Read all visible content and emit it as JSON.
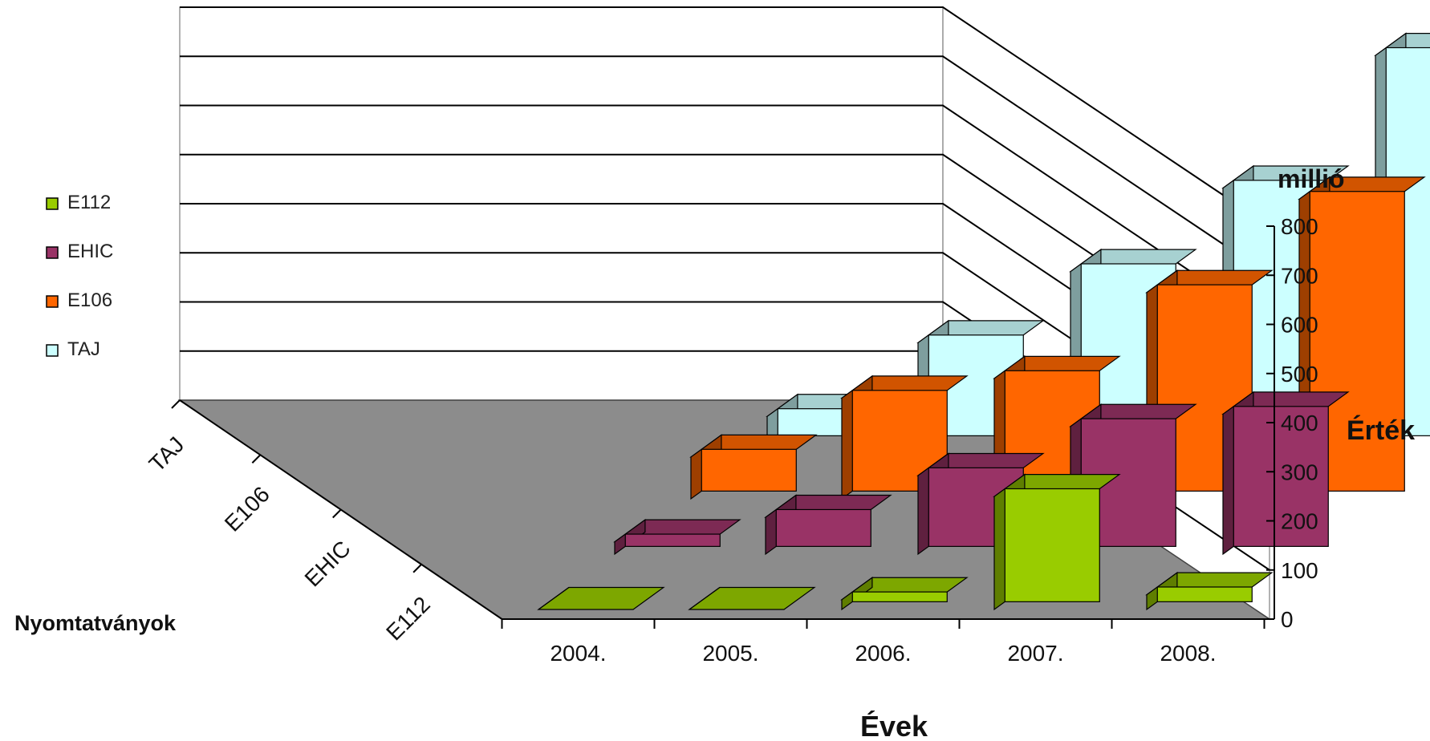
{
  "chart_data": {
    "type": "bar",
    "categories": [
      "2004.",
      "2005.",
      "2006.",
      "2007.",
      "2008."
    ],
    "series": [
      {
        "name": "TAJ",
        "values": [
          55,
          205,
          350,
          520,
          790
        ],
        "color": "#ccffff"
      },
      {
        "name": "E106",
        "values": [
          85,
          205,
          245,
          420,
          610
        ],
        "color": "#ff6600"
      },
      {
        "name": "EHIC",
        "values": [
          25,
          75,
          160,
          260,
          285
        ],
        "color": "#993366"
      },
      {
        "name": "E112",
        "values": [
          0,
          0,
          20,
          230,
          30
        ],
        "color": "#99cc00"
      }
    ],
    "legend": [
      "E112",
      "EHIC",
      "E106",
      "TAJ"
    ],
    "legend_position": "left",
    "xlabel": "Évek",
    "depth_label": "Nyomtatványok",
    "ylabel": "Érték",
    "unit_label": "millió",
    "yticks": [
      "0",
      "100",
      "200",
      "300",
      "400",
      "500",
      "600",
      "700",
      "800"
    ],
    "ylim": [
      0,
      800
    ],
    "grid": true,
    "view": "3d-perspective"
  }
}
